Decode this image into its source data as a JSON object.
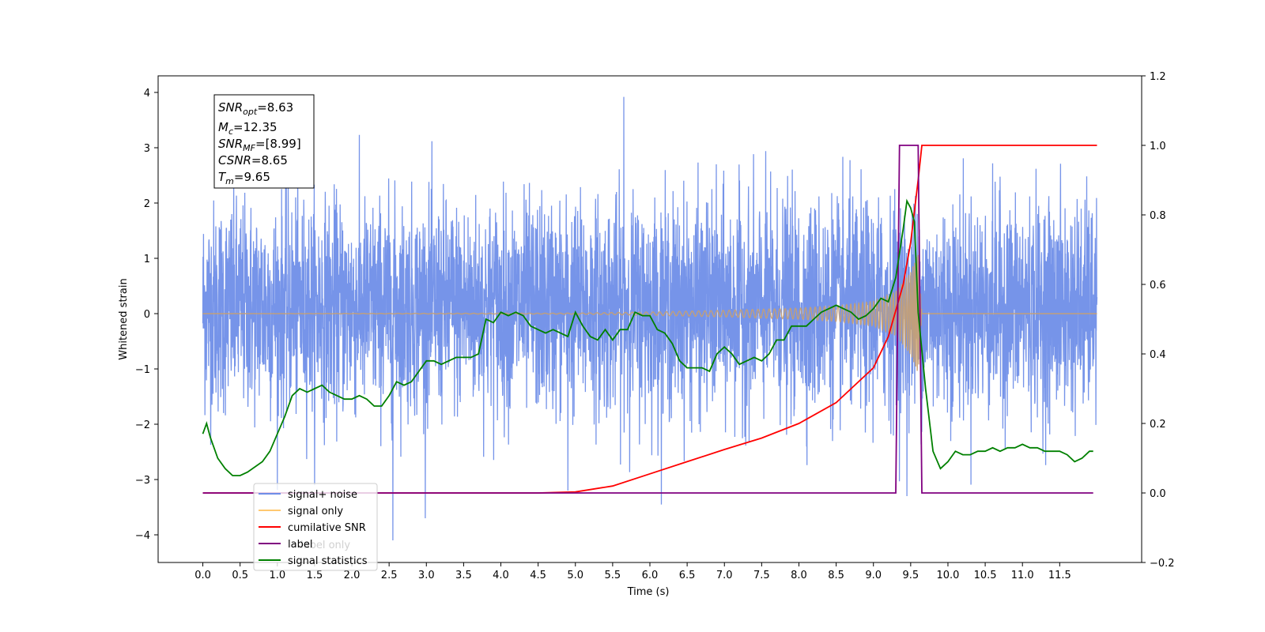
{
  "chart_data": {
    "type": "line",
    "xlabel": "Time (s)",
    "ylabel": "Whitened strain",
    "xlim": [
      -0.6,
      12.6
    ],
    "ylim": [
      -4.5,
      4.3
    ],
    "y2lim": [
      -0.2,
      1.2
    ],
    "x_ticks": [
      "0.0",
      "0.5",
      "1.0",
      "1.5",
      "2.0",
      "2.5",
      "3.0",
      "3.5",
      "4.0",
      "4.5",
      "5.0",
      "5.5",
      "6.0",
      "6.5",
      "7.0",
      "7.5",
      "8.0",
      "8.5",
      "9.0",
      "9.5",
      "10.0",
      "10.5",
      "11.0",
      "11.5"
    ],
    "x_tick_values": [
      0.0,
      0.5,
      1.0,
      1.5,
      2.0,
      2.5,
      3.0,
      3.5,
      4.0,
      4.5,
      5.0,
      5.5,
      6.0,
      6.5,
      7.0,
      7.5,
      8.0,
      8.5,
      9.0,
      9.5,
      10.0,
      10.5,
      11.0,
      11.5
    ],
    "y_ticks": [
      "4",
      "3",
      "2",
      "1",
      "0",
      "−1",
      "−2",
      "−3",
      "−4"
    ],
    "y_tick_values": [
      4,
      3,
      2,
      1,
      0,
      -1,
      -2,
      -3,
      -4
    ],
    "y2_ticks": [
      "1.2",
      "1.0",
      "0.8",
      "0.6",
      "0.4",
      "0.2",
      "0.0",
      "−0.2"
    ],
    "y2_tick_values": [
      1.2,
      1.0,
      0.8,
      0.6,
      0.4,
      0.2,
      0.0,
      -0.2
    ],
    "grid": false,
    "legend_position": "bottom-left",
    "stats_box": {
      "snr_opt": {
        "base": "SNR",
        "sub": "opt",
        "value": "=8.63"
      },
      "mc": {
        "base": "M",
        "sub": "c",
        "value": "=12.35"
      },
      "snr_mf": {
        "base": "SNR",
        "sub": "MF",
        "value": "=[8.99]"
      },
      "csnr": {
        "base": "CSNR",
        "value": "=8.65"
      },
      "tm": {
        "base": "T",
        "sub": "m",
        "value": "=9.65"
      }
    },
    "legend": [
      {
        "name": "signal+ noise",
        "color": "#6f8ee8"
      },
      {
        "name": "signal only",
        "color": "#ffc870"
      },
      {
        "name": "cumilative SNR",
        "color": "#ff0000"
      },
      {
        "name": "label",
        "color": "#800080"
      },
      {
        "name": "label only",
        "color": "#cccccc"
      },
      {
        "name": "signal statistics",
        "color": "#008000"
      }
    ],
    "series": [
      {
        "name": "signal+ noise",
        "axis": "left",
        "color": "#6f8ee8",
        "time_range": [
          0.0,
          12.0
        ],
        "mean": 0.12,
        "std": 0.95,
        "extremes": [
          [
            5.65,
            3.92
          ],
          [
            2.55,
            -4.1
          ],
          [
            9.45,
            -3.3
          ],
          [
            4.9,
            -3.2
          ]
        ]
      },
      {
        "name": "signal only",
        "axis": "left",
        "color": "#c9a070",
        "chirp_envelope": [
          [
            0.0,
            0.0
          ],
          [
            5.0,
            0.01
          ],
          [
            6.0,
            0.03
          ],
          [
            7.0,
            0.06
          ],
          [
            8.0,
            0.1
          ],
          [
            8.5,
            0.14
          ],
          [
            9.0,
            0.22
          ],
          [
            9.3,
            0.4
          ],
          [
            9.5,
            0.75
          ],
          [
            9.6,
            1.1
          ],
          [
            9.65,
            0.0
          ],
          [
            12.0,
            0.0
          ]
        ]
      },
      {
        "name": "cumilative SNR",
        "axis": "right",
        "color": "#ff0000",
        "points": [
          [
            0.0,
            0.0
          ],
          [
            4.5,
            0.0
          ],
          [
            5.0,
            0.003
          ],
          [
            5.5,
            0.02
          ],
          [
            6.0,
            0.055
          ],
          [
            6.5,
            0.09
          ],
          [
            7.0,
            0.125
          ],
          [
            7.5,
            0.158
          ],
          [
            8.0,
            0.2
          ],
          [
            8.5,
            0.26
          ],
          [
            9.0,
            0.36
          ],
          [
            9.2,
            0.45
          ],
          [
            9.4,
            0.6
          ],
          [
            9.5,
            0.72
          ],
          [
            9.6,
            0.9
          ],
          [
            9.65,
            1.0
          ],
          [
            12.0,
            1.0
          ]
        ]
      },
      {
        "name": "label",
        "axis": "right",
        "color": "#800080",
        "points": [
          [
            0.0,
            0.0
          ],
          [
            9.3,
            0.0
          ],
          [
            9.35,
            1.0
          ],
          [
            9.6,
            1.0
          ],
          [
            9.65,
            0.0
          ],
          [
            11.95,
            0.0
          ]
        ]
      },
      {
        "name": "signal statistics",
        "axis": "right",
        "color": "#008000",
        "points": [
          [
            0.0,
            0.17
          ],
          [
            0.05,
            0.2
          ],
          [
            0.1,
            0.16
          ],
          [
            0.2,
            0.1
          ],
          [
            0.3,
            0.07
          ],
          [
            0.4,
            0.05
          ],
          [
            0.5,
            0.05
          ],
          [
            0.6,
            0.06
          ],
          [
            0.8,
            0.09
          ],
          [
            0.9,
            0.12
          ],
          [
            1.0,
            0.17
          ],
          [
            1.1,
            0.22
          ],
          [
            1.2,
            0.28
          ],
          [
            1.3,
            0.3
          ],
          [
            1.4,
            0.29
          ],
          [
            1.5,
            0.3
          ],
          [
            1.6,
            0.31
          ],
          [
            1.7,
            0.29
          ],
          [
            1.8,
            0.28
          ],
          [
            1.9,
            0.27
          ],
          [
            2.0,
            0.27
          ],
          [
            2.1,
            0.28
          ],
          [
            2.2,
            0.27
          ],
          [
            2.3,
            0.25
          ],
          [
            2.4,
            0.25
          ],
          [
            2.5,
            0.28
          ],
          [
            2.6,
            0.32
          ],
          [
            2.7,
            0.31
          ],
          [
            2.8,
            0.32
          ],
          [
            2.9,
            0.35
          ],
          [
            3.0,
            0.38
          ],
          [
            3.1,
            0.38
          ],
          [
            3.2,
            0.37
          ],
          [
            3.3,
            0.38
          ],
          [
            3.4,
            0.39
          ],
          [
            3.5,
            0.39
          ],
          [
            3.6,
            0.39
          ],
          [
            3.7,
            0.4
          ],
          [
            3.8,
            0.5
          ],
          [
            3.9,
            0.49
          ],
          [
            4.0,
            0.52
          ],
          [
            4.1,
            0.51
          ],
          [
            4.2,
            0.52
          ],
          [
            4.3,
            0.51
          ],
          [
            4.4,
            0.48
          ],
          [
            4.5,
            0.47
          ],
          [
            4.6,
            0.46
          ],
          [
            4.7,
            0.47
          ],
          [
            4.8,
            0.46
          ],
          [
            4.9,
            0.45
          ],
          [
            5.0,
            0.52
          ],
          [
            5.1,
            0.48
          ],
          [
            5.2,
            0.45
          ],
          [
            5.3,
            0.44
          ],
          [
            5.4,
            0.47
          ],
          [
            5.5,
            0.44
          ],
          [
            5.6,
            0.47
          ],
          [
            5.7,
            0.47
          ],
          [
            5.8,
            0.52
          ],
          [
            5.9,
            0.51
          ],
          [
            6.0,
            0.51
          ],
          [
            6.1,
            0.47
          ],
          [
            6.2,
            0.46
          ],
          [
            6.3,
            0.43
          ],
          [
            6.4,
            0.38
          ],
          [
            6.5,
            0.36
          ],
          [
            6.6,
            0.36
          ],
          [
            6.7,
            0.36
          ],
          [
            6.8,
            0.35
          ],
          [
            6.9,
            0.4
          ],
          [
            7.0,
            0.42
          ],
          [
            7.1,
            0.4
          ],
          [
            7.2,
            0.37
          ],
          [
            7.3,
            0.38
          ],
          [
            7.4,
            0.39
          ],
          [
            7.5,
            0.38
          ],
          [
            7.6,
            0.4
          ],
          [
            7.7,
            0.44
          ],
          [
            7.8,
            0.44
          ],
          [
            7.9,
            0.48
          ],
          [
            8.0,
            0.48
          ],
          [
            8.1,
            0.48
          ],
          [
            8.2,
            0.5
          ],
          [
            8.3,
            0.52
          ],
          [
            8.4,
            0.53
          ],
          [
            8.5,
            0.54
          ],
          [
            8.6,
            0.53
          ],
          [
            8.7,
            0.52
          ],
          [
            8.8,
            0.5
          ],
          [
            8.9,
            0.51
          ],
          [
            9.0,
            0.53
          ],
          [
            9.1,
            0.56
          ],
          [
            9.2,
            0.55
          ],
          [
            9.3,
            0.62
          ],
          [
            9.4,
            0.76
          ],
          [
            9.45,
            0.84
          ],
          [
            9.5,
            0.82
          ],
          [
            9.55,
            0.78
          ],
          [
            9.6,
            0.52
          ],
          [
            9.7,
            0.3
          ],
          [
            9.8,
            0.12
          ],
          [
            9.9,
            0.07
          ],
          [
            10.0,
            0.09
          ],
          [
            10.1,
            0.12
          ],
          [
            10.2,
            0.11
          ],
          [
            10.3,
            0.11
          ],
          [
            10.4,
            0.12
          ],
          [
            10.5,
            0.12
          ],
          [
            10.6,
            0.13
          ],
          [
            10.7,
            0.12
          ],
          [
            10.8,
            0.13
          ],
          [
            10.9,
            0.13
          ],
          [
            11.0,
            0.14
          ],
          [
            11.1,
            0.13
          ],
          [
            11.2,
            0.13
          ],
          [
            11.3,
            0.12
          ],
          [
            11.4,
            0.12
          ],
          [
            11.5,
            0.12
          ],
          [
            11.6,
            0.11
          ],
          [
            11.7,
            0.09
          ],
          [
            11.8,
            0.1
          ],
          [
            11.9,
            0.12
          ],
          [
            11.95,
            0.12
          ]
        ]
      }
    ]
  }
}
